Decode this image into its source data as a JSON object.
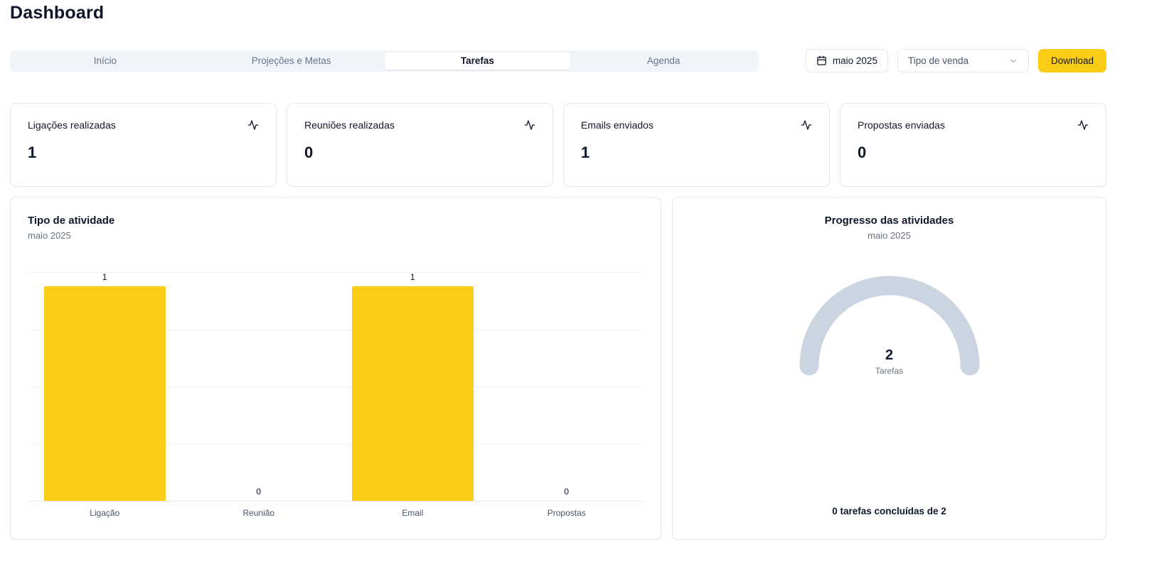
{
  "page": {
    "title": "Dashboard"
  },
  "tabs": [
    {
      "label": "Início",
      "active": false
    },
    {
      "label": "Projeções e Metas",
      "active": false
    },
    {
      "label": "Tarefas",
      "active": true
    },
    {
      "label": "Agenda",
      "active": false
    }
  ],
  "toolbar": {
    "date_label": "maio 2025",
    "filter_label": "Tipo de venda",
    "download_label": "Download"
  },
  "colors": {
    "accent_yellow": "#facc15",
    "gauge_track": "#cbd5e1"
  },
  "stats": [
    {
      "label": "Ligações realizadas",
      "value": "1"
    },
    {
      "label": "Reuniões realizadas",
      "value": "0"
    },
    {
      "label": "Emails enviados",
      "value": "1"
    },
    {
      "label": "Propostas enviadas",
      "value": "0"
    }
  ],
  "chart_data": [
    {
      "type": "bar",
      "title": "Tipo de atividade",
      "subtitle": "maio 2025",
      "categories": [
        "Ligação",
        "Reunião",
        "Email",
        "Propostas"
      ],
      "values": [
        1,
        0,
        1,
        0
      ],
      "ylim": [
        0,
        1
      ],
      "grid": true,
      "bar_color": "#facc15"
    },
    {
      "type": "gauge",
      "title": "Progresso das atividades",
      "subtitle": "maio 2025",
      "center_value": "2",
      "center_label": "Tarefas",
      "completed": 0,
      "total": 2,
      "footer": "0 tarefas concluídas de 2",
      "track_color": "#cbd5e1"
    }
  ]
}
